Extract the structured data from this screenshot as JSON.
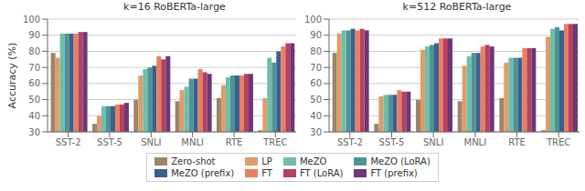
{
  "chart_data": [
    {
      "type": "bar",
      "title": "k=16 RoBERTa-large",
      "ylabel": "Accuracy (%)",
      "categories": [
        "SST-2",
        "SST-5",
        "SNLI",
        "MNLI",
        "RTE",
        "TREC"
      ],
      "series": [
        {
          "name": "Zero-shot",
          "color": "#9e8468",
          "values": [
            79,
            35,
            50,
            49,
            51,
            31
          ]
        },
        {
          "name": "LP",
          "color": "#e09c6a",
          "values": [
            76,
            40,
            65,
            56,
            59,
            51
          ]
        },
        {
          "name": "MeZO",
          "color": "#6dbfaa",
          "values": [
            91,
            46,
            69,
            58,
            64,
            76
          ]
        },
        {
          "name": "MeZO (LoRA)",
          "color": "#4e9496",
          "values": [
            91,
            46,
            70,
            63,
            65,
            73
          ]
        },
        {
          "name": "MeZO (prefix)",
          "color": "#3a6090",
          "values": [
            91,
            46,
            71,
            63,
            65,
            80
          ]
        },
        {
          "name": "FT",
          "color": "#e88060",
          "values": [
            91,
            47,
            77,
            69,
            65,
            83
          ]
        },
        {
          "name": "FT (LoRA)",
          "color": "#b54060",
          "values": [
            92,
            47,
            75,
            67,
            66,
            85
          ]
        },
        {
          "name": "FT (prefix)",
          "color": "#6b3878",
          "values": [
            92,
            48,
            77,
            66,
            66,
            85
          ]
        }
      ],
      "ylim": [
        30,
        100
      ],
      "yticks": [
        30,
        40,
        50,
        60,
        70,
        80,
        90,
        100
      ],
      "grid": true,
      "legend": "bottom"
    },
    {
      "type": "bar",
      "title": "k=512 RoBERTa-large",
      "categories": [
        "SST-2",
        "SST-5",
        "SNLI",
        "MNLI",
        "RTE",
        "TREC"
      ],
      "series": [
        {
          "name": "Zero-shot",
          "color": "#9e8468",
          "values": [
            79,
            35,
            50,
            49,
            51,
            31
          ]
        },
        {
          "name": "LP",
          "color": "#e09c6a",
          "values": [
            91,
            52,
            81,
            71,
            73,
            89
          ]
        },
        {
          "name": "MeZO",
          "color": "#6dbfaa",
          "values": [
            93,
            53,
            83,
            77,
            76,
            94
          ]
        },
        {
          "name": "MeZO (LoRA)",
          "color": "#4e9496",
          "values": [
            93,
            53,
            84,
            79,
            76,
            95
          ]
        },
        {
          "name": "MeZO (prefix)",
          "color": "#3a6090",
          "values": [
            94,
            53,
            85,
            79,
            76,
            93
          ]
        },
        {
          "name": "FT",
          "color": "#e88060",
          "values": [
            93,
            56,
            88,
            83,
            82,
            97
          ]
        },
        {
          "name": "FT (LoRA)",
          "color": "#b54060",
          "values": [
            94,
            55,
            88,
            84,
            82,
            97
          ]
        },
        {
          "name": "FT (prefix)",
          "color": "#6b3878",
          "values": [
            93,
            55,
            88,
            83,
            82,
            97
          ]
        }
      ],
      "ylim": [
        30,
        100
      ],
      "yticks": [
        30,
        40,
        50,
        60,
        70,
        80,
        90,
        100
      ],
      "grid": true
    }
  ]
}
